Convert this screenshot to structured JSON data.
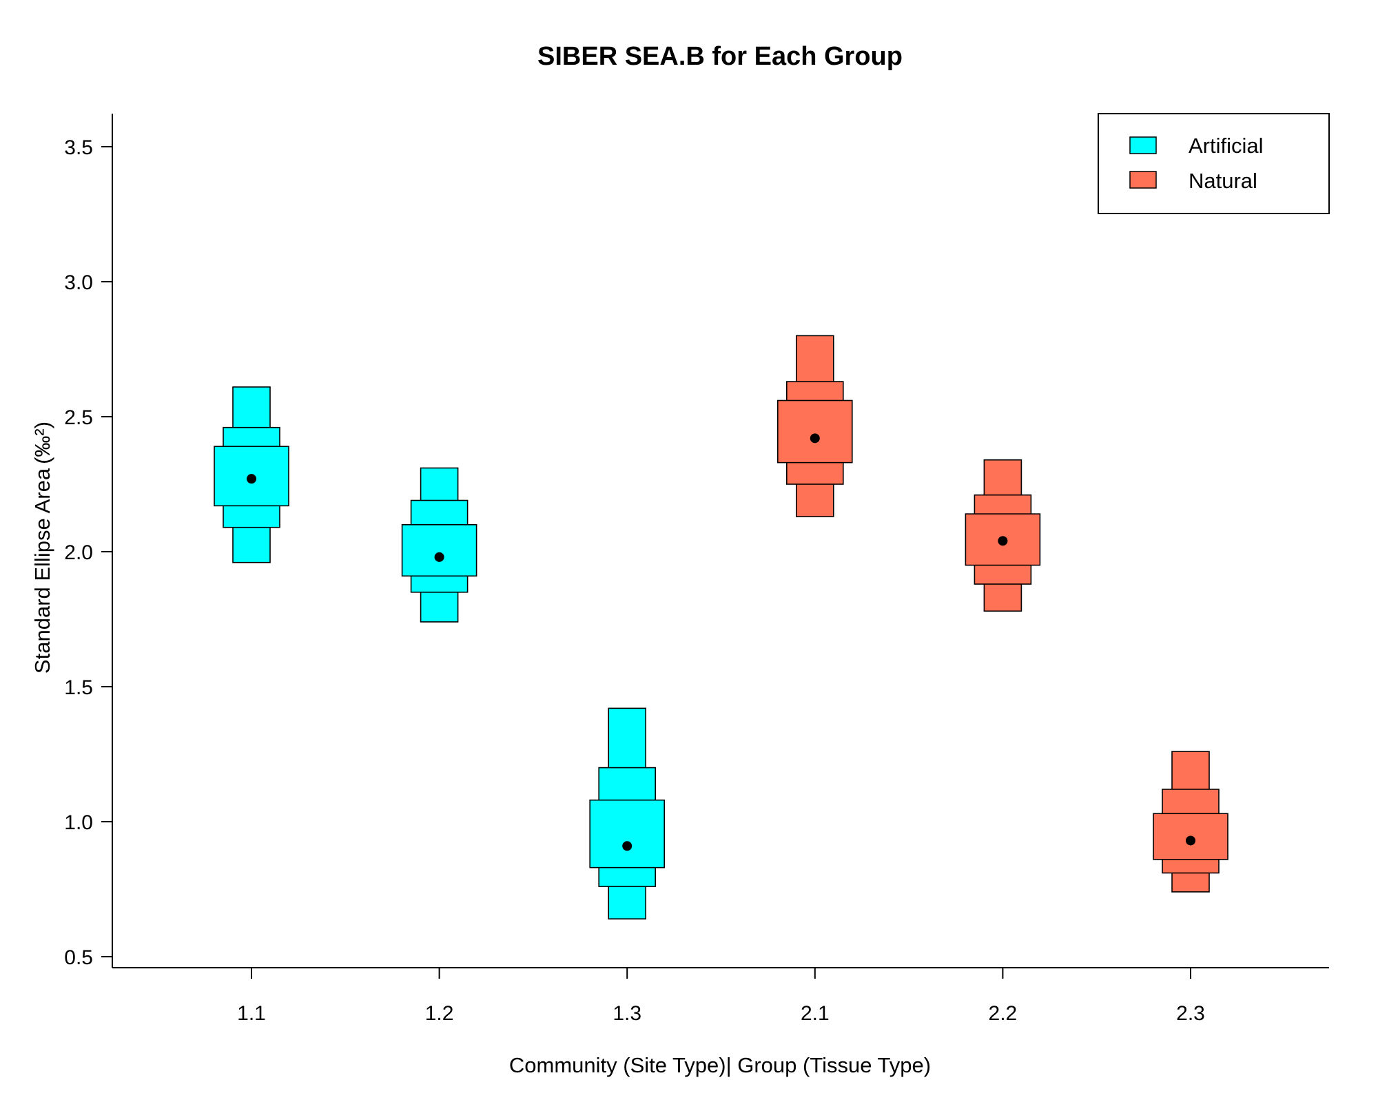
{
  "chart_data": {
    "type": "box",
    "title": "SIBER SEA.B for Each Group",
    "xlabel": "Community (Site Type)| Group (Tissue Type)",
    "ylabel": "Standard Ellipse Area",
    "ylabel_unit": "(‰²)",
    "ylim": [
      0.36,
      3.54
    ],
    "yticks": [
      "0.5",
      "1.0",
      "1.5",
      "2.0",
      "2.5",
      "3.0",
      "3.5"
    ],
    "ytick_values": [
      0.5,
      1.0,
      1.5,
      2.0,
      2.5,
      3.0,
      3.5
    ],
    "categories": [
      "1.1",
      "1.2",
      "1.3",
      "2.1",
      "2.2",
      "2.3"
    ],
    "legend": {
      "position": "top-right",
      "entries": [
        {
          "label": "Artificial",
          "color": "#00FFFF"
        },
        {
          "label": "Natural",
          "color": "#FF7256"
        }
      ]
    },
    "groups": [
      {
        "category": "1.1",
        "series": "Artificial",
        "mode": 2.27,
        "ci50": [
          2.17,
          2.39
        ],
        "ci75": [
          2.09,
          2.46
        ],
        "ci95": [
          1.96,
          2.61
        ]
      },
      {
        "category": "1.2",
        "series": "Artificial",
        "mode": 1.98,
        "ci50": [
          1.91,
          2.1
        ],
        "ci75": [
          1.85,
          2.19
        ],
        "ci95": [
          1.74,
          2.31
        ]
      },
      {
        "category": "1.3",
        "series": "Artificial",
        "mode": 0.91,
        "ci50": [
          0.83,
          1.08
        ],
        "ci75": [
          0.76,
          1.2
        ],
        "ci95": [
          0.64,
          1.42
        ]
      },
      {
        "category": "2.1",
        "series": "Natural",
        "mode": 2.42,
        "ci50": [
          2.33,
          2.56
        ],
        "ci75": [
          2.25,
          2.63
        ],
        "ci95": [
          2.13,
          2.8
        ]
      },
      {
        "category": "2.2",
        "series": "Natural",
        "mode": 2.04,
        "ci50": [
          1.95,
          2.14
        ],
        "ci75": [
          1.88,
          2.21
        ],
        "ci95": [
          1.78,
          2.34
        ]
      },
      {
        "category": "2.3",
        "series": "Natural",
        "mode": 0.93,
        "ci50": [
          0.86,
          1.03
        ],
        "ci75": [
          0.81,
          1.12
        ],
        "ci95": [
          0.74,
          1.26
        ]
      }
    ],
    "colors": {
      "Artificial": "#00FFFF",
      "Natural": "#FF7256"
    }
  }
}
